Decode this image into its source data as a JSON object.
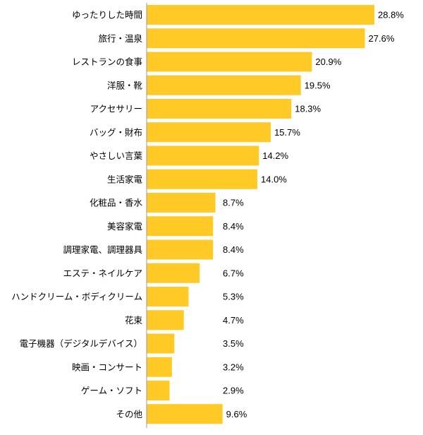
{
  "chart_data": {
    "type": "bar",
    "orientation": "horizontal",
    "categories": [
      "ゆったりした時間",
      "旅行・温泉",
      "レストランの食事",
      "洋服・靴",
      "アクセサリー",
      "バッグ・財布",
      "やさしい言葉",
      "生活家電",
      "化粧品・香水",
      "美容家電",
      "調理家電、調理器具",
      "エステ・ネイルケア",
      "ハンドクリーム・ボディクリーム",
      "花束",
      "電子機器（デジタルデバイス）",
      "映画・コンサート",
      "ゲーム・ソフト",
      "その他"
    ],
    "values": [
      28.8,
      27.6,
      20.9,
      19.5,
      18.3,
      15.7,
      14.2,
      14.0,
      8.7,
      8.4,
      8.4,
      6.7,
      5.3,
      4.7,
      3.5,
      3.2,
      2.9,
      9.6
    ],
    "value_labels": [
      "28.8%",
      "27.6%",
      "20.9%",
      "19.5%",
      "18.3%",
      "15.7%",
      "14.2%",
      "14.0%",
      "8.7%",
      "8.4%",
      "8.4%",
      "6.7%",
      "5.3%",
      "4.7%",
      "3.5%",
      "3.2%",
      "2.9%",
      "9.6%"
    ],
    "title": "",
    "xlabel": "",
    "ylabel": "",
    "xlim": [
      0,
      28.8
    ],
    "grid": false,
    "bar_color": "#FFC926",
    "axis_color": "#999999"
  }
}
